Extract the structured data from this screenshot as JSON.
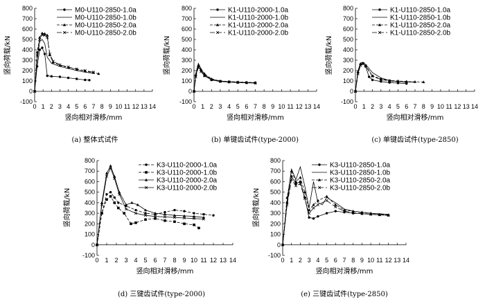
{
  "chart_data": [
    {
      "type": "line",
      "caption": "(a) 整体式试件",
      "xlabel": "竖向相对滑移/mm",
      "ylabel": "竖向荷载/kN",
      "xlim": [
        0,
        14
      ],
      "ylim": [
        -100,
        800
      ],
      "xticks": [
        0,
        1,
        2,
        3,
        4,
        5,
        6,
        7,
        8,
        9,
        10,
        11,
        12,
        13,
        14
      ],
      "yticks": [
        -100,
        0,
        100,
        200,
        300,
        400,
        500,
        600,
        700,
        800
      ],
      "legend_position": "top-right",
      "series": [
        {
          "name": "M0-U110-2850-1.0a",
          "marker": "circle",
          "dash": "solid",
          "x": [
            0,
            0.3,
            0.6,
            0.9,
            1.2,
            1.5,
            2,
            3,
            4,
            5,
            6,
            6.5
          ],
          "y": [
            0,
            240,
            400,
            420,
            360,
            150,
            145,
            140,
            130,
            120,
            110,
            108
          ]
        },
        {
          "name": "M0-U110-2850-1.0b",
          "marker": "none",
          "dash": "solid",
          "x": [
            0,
            0.3,
            0.6,
            0.9,
            1.2,
            1.5,
            2,
            3,
            4,
            5,
            6,
            7
          ],
          "y": [
            0,
            300,
            480,
            500,
            460,
            330,
            270,
            240,
            220,
            200,
            185,
            175
          ]
        },
        {
          "name": "M0-U110-2850-2.0a",
          "marker": "triangle",
          "dash": "dash",
          "x": [
            0,
            0.3,
            0.6,
            0.9,
            1.2,
            1.5,
            1.8,
            2.2,
            3,
            4,
            5,
            6,
            7,
            7.6
          ],
          "y": [
            0,
            380,
            520,
            560,
            555,
            540,
            350,
            280,
            250,
            230,
            210,
            195,
            180,
            170
          ]
        },
        {
          "name": "M0-U110-2850-2.0b",
          "marker": "cross",
          "dash": "longdash",
          "x": [
            0,
            0.3,
            0.6,
            0.9,
            1.2,
            1.5,
            1.8,
            2.2,
            3,
            4,
            5,
            6,
            7
          ],
          "y": [
            0,
            350,
            500,
            545,
            540,
            520,
            360,
            290,
            255,
            235,
            215,
            200,
            185
          ]
        }
      ]
    },
    {
      "type": "line",
      "caption": "(b) 单键齿试件(type-2000)",
      "xlabel": "竖向相对滑移/mm",
      "ylabel": "竖向荷载/kN",
      "xlim": [
        0,
        14
      ],
      "ylim": [
        -100,
        800
      ],
      "xticks": [
        0,
        1,
        2,
        3,
        4,
        5,
        6,
        7,
        8,
        9,
        10,
        11,
        12,
        13,
        14
      ],
      "yticks": [
        -100,
        0,
        100,
        200,
        300,
        400,
        500,
        600,
        700,
        800
      ],
      "legend_position": "top-right",
      "series": [
        {
          "name": "K1-U110-2000-1.0a",
          "marker": "circle",
          "dash": "solid",
          "x": [
            0,
            0.2,
            0.5,
            0.8,
            1.2,
            2,
            3,
            4,
            5,
            6,
            7
          ],
          "y": [
            0,
            150,
            240,
            200,
            150,
            110,
            95,
            90,
            85,
            82,
            80
          ]
        },
        {
          "name": "K1-U110-2000-1.0b",
          "marker": "none",
          "dash": "solid",
          "x": [
            0,
            0.2,
            0.5,
            0.8,
            1.2,
            2,
            3,
            4,
            5,
            6,
            7
          ],
          "y": [
            0,
            170,
            270,
            220,
            160,
            115,
            100,
            92,
            88,
            85,
            82
          ]
        },
        {
          "name": "K1-U110-2000-2.0a",
          "marker": "triangle",
          "dash": "dash",
          "x": [
            0,
            0.2,
            0.5,
            0.8,
            1.2,
            2,
            3,
            4,
            5,
            6,
            7
          ],
          "y": [
            0,
            160,
            250,
            210,
            170,
            120,
            100,
            95,
            90,
            88,
            85
          ]
        },
        {
          "name": "K1-U110-2000-2.0b",
          "marker": "cross",
          "dash": "longdash",
          "x": [
            0,
            0.2,
            0.5,
            0.8,
            1.2,
            2,
            3,
            4,
            5,
            6,
            7
          ],
          "y": [
            0,
            140,
            230,
            190,
            150,
            112,
            96,
            90,
            86,
            84,
            80
          ]
        }
      ]
    },
    {
      "type": "line",
      "caption": "(c) 单键齿试件(type-2850)",
      "xlabel": "竖向相对滑移/mm",
      "ylabel": "竖向荷载/kN",
      "xlim": [
        0,
        14
      ],
      "ylim": [
        -100,
        800
      ],
      "xticks": [
        0,
        1,
        2,
        3,
        4,
        5,
        6,
        7,
        8,
        9,
        10,
        11,
        12,
        13,
        14
      ],
      "yticks": [
        -100,
        0,
        100,
        200,
        300,
        400,
        500,
        600,
        700,
        800
      ],
      "legend_position": "top-right",
      "series": [
        {
          "name": "K1-U110-2850-1.0a",
          "marker": "circle",
          "dash": "solid",
          "x": [
            0,
            0.3,
            0.6,
            0.9,
            1.2,
            1.6,
            2,
            3,
            4,
            5,
            6
          ],
          "y": [
            0,
            180,
            260,
            270,
            240,
            140,
            110,
            95,
            85,
            80,
            75
          ]
        },
        {
          "name": "K1-U110-2850-1.0b",
          "marker": "none",
          "dash": "solid",
          "x": [
            0,
            0.3,
            0.6,
            0.9,
            1.2,
            1.6,
            2,
            3,
            4,
            5,
            6,
            7
          ],
          "y": [
            0,
            200,
            275,
            280,
            260,
            220,
            180,
            130,
            105,
            95,
            90,
            88
          ]
        },
        {
          "name": "K1-U110-2850-2.0a",
          "marker": "triangle",
          "dash": "dash",
          "x": [
            0,
            0.3,
            0.6,
            0.9,
            1.2,
            2,
            3,
            4,
            5,
            6,
            7,
            8
          ],
          "y": [
            0,
            190,
            265,
            270,
            250,
            150,
            120,
            105,
            100,
            95,
            92,
            90
          ]
        },
        {
          "name": "K1-U110-2850-2.0b",
          "marker": "cross",
          "dash": "longdash",
          "x": [
            0,
            0.3,
            0.6,
            0.9,
            1.2,
            2,
            3,
            4,
            5,
            6
          ],
          "y": [
            0,
            170,
            250,
            265,
            245,
            145,
            115,
            100,
            92,
            88
          ]
        }
      ]
    },
    {
      "type": "line",
      "caption": "(d) 三键齿试件(type-2000)",
      "xlabel": "竖向相对滑移/mm",
      "ylabel": "竖向荷载/kN",
      "xlim": [
        0,
        14
      ],
      "ylim": [
        -100,
        800
      ],
      "xticks": [
        0,
        1,
        2,
        3,
        4,
        5,
        6,
        7,
        8,
        9,
        10,
        11,
        12,
        13,
        14
      ],
      "yticks": [
        -100,
        0,
        100,
        200,
        300,
        400,
        500,
        600,
        700,
        800
      ],
      "legend_position": "top-right",
      "series": [
        {
          "name": "K3-U110-2000-1.0a",
          "marker": "circle",
          "dash": "dash",
          "x": [
            0,
            0.5,
            1,
            1.4,
            1.8,
            2.2,
            3,
            4,
            5,
            6,
            7,
            8,
            9,
            10,
            11,
            12
          ],
          "y": [
            0,
            300,
            480,
            500,
            450,
            400,
            370,
            330,
            300,
            290,
            310,
            330,
            320,
            300,
            290,
            280
          ]
        },
        {
          "name": "K3-U110-2000-1.0b",
          "marker": "square",
          "dash": "dash",
          "x": [
            0,
            0.5,
            1,
            1.4,
            1.8,
            2.2,
            2.8,
            3.5,
            4,
            5,
            6,
            7,
            8,
            9,
            10,
            10.5
          ],
          "y": [
            0,
            300,
            430,
            460,
            400,
            350,
            300,
            200,
            210,
            240,
            250,
            230,
            220,
            200,
            190,
            160
          ]
        },
        {
          "name": "K3-U110-2000-2.0a",
          "marker": "triangle",
          "dash": "solid",
          "x": [
            0,
            0.5,
            1,
            1.4,
            1.8,
            2.3,
            3,
            3.6,
            4.2,
            5,
            6,
            7,
            8,
            9,
            10,
            11
          ],
          "y": [
            0,
            400,
            680,
            750,
            650,
            500,
            380,
            400,
            380,
            330,
            300,
            290,
            280,
            275,
            270,
            260
          ]
        },
        {
          "name": "K3-U110-2000-2.0b",
          "marker": "cross",
          "dash": "solid",
          "x": [
            0,
            0.5,
            1,
            1.4,
            1.8,
            2.3,
            3,
            4,
            5,
            6,
            7,
            8,
            9,
            10,
            11
          ],
          "y": [
            0,
            380,
            650,
            730,
            630,
            480,
            340,
            300,
            280,
            270,
            265,
            260,
            255,
            250,
            245
          ]
        }
      ]
    },
    {
      "type": "line",
      "caption": "(e) 三键齿试件(type-2850)",
      "xlabel": "竖向相对滑移/mm",
      "ylabel": "竖向荷载/kN",
      "xlim": [
        0,
        14
      ],
      "ylim": [
        -100,
        800
      ],
      "xticks": [
        0,
        1,
        2,
        3,
        4,
        5,
        6,
        7,
        8,
        9,
        10,
        11,
        12,
        13,
        14
      ],
      "yticks": [
        -100,
        0,
        100,
        200,
        300,
        400,
        500,
        600,
        700,
        800
      ],
      "legend_position": "top-right",
      "series": [
        {
          "name": "K3-U110-2850-1.0a",
          "marker": "circle",
          "dash": "solid",
          "x": [
            0,
            0.5,
            1,
            1.5,
            2,
            2.5,
            3,
            3.5,
            4,
            5,
            6,
            7,
            8,
            9,
            10,
            11,
            12
          ],
          "y": [
            0,
            400,
            650,
            580,
            600,
            450,
            260,
            250,
            270,
            300,
            320,
            310,
            300,
            295,
            290,
            285,
            280
          ]
        },
        {
          "name": "K3-U110-2850-1.0b",
          "marker": "none",
          "dash": "solid",
          "x": [
            0,
            0.5,
            1,
            1.5,
            2,
            2.5,
            3,
            3.5,
            4,
            4.5,
            5,
            6,
            7,
            8,
            9,
            10,
            11,
            12
          ],
          "y": [
            0,
            420,
            720,
            620,
            740,
            560,
            350,
            600,
            400,
            380,
            450,
            400,
            340,
            320,
            310,
            300,
            295,
            290
          ]
        },
        {
          "name": "K3-U110-2850-2.0a",
          "marker": "triangle",
          "dash": "dash",
          "x": [
            0,
            0.5,
            1,
            1.5,
            2,
            2.5,
            3,
            3.5,
            4,
            5,
            6,
            7,
            8,
            9,
            10,
            11,
            12
          ],
          "y": [
            0,
            450,
            700,
            600,
            640,
            500,
            330,
            380,
            420,
            460,
            380,
            330,
            320,
            310,
            300,
            290,
            285
          ]
        },
        {
          "name": "K3-U110-2850-2.0b",
          "marker": "cross",
          "dash": "longdash",
          "x": [
            0,
            0.5,
            1,
            1.5,
            2,
            2.5,
            3,
            3.5,
            4,
            5,
            6,
            7,
            8,
            9,
            10,
            11,
            12
          ],
          "y": [
            0,
            380,
            620,
            560,
            580,
            440,
            300,
            350,
            380,
            420,
            360,
            320,
            305,
            300,
            290,
            285,
            280
          ]
        }
      ]
    }
  ]
}
